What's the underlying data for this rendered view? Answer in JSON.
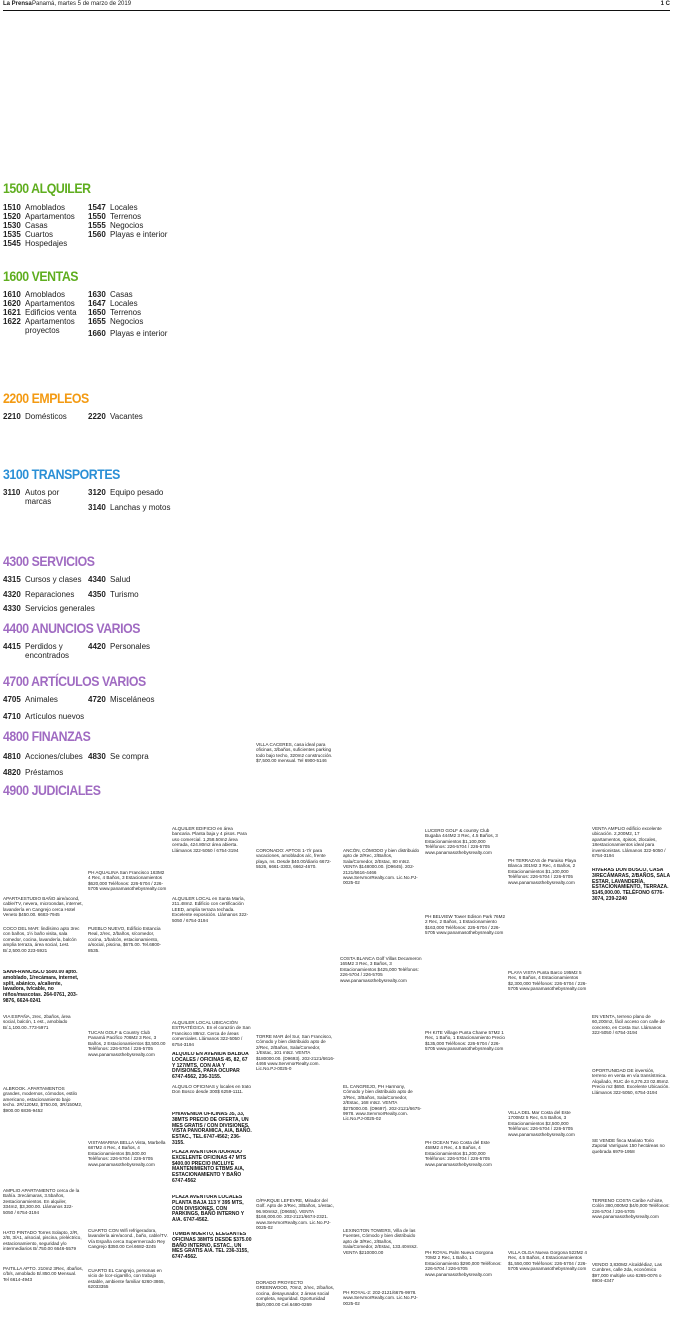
{
  "header": {
    "publication": "La Prensa",
    "date": "Panamá, martes 5 de marzo de 2019",
    "page": "1 C"
  },
  "index": {
    "alquiler": {
      "title": "1500 ALQUILER",
      "col1": [
        {
          "num": "1510",
          "label": "Amoblados"
        },
        {
          "num": "1520",
          "label": "Apartamentos"
        },
        {
          "num": "1530",
          "label": "Casas"
        },
        {
          "num": "1535",
          "label": "Cuartos"
        },
        {
          "num": "1545",
          "label": "Hospedajes"
        }
      ],
      "col2": [
        {
          "num": "1547",
          "label": "Locales"
        },
        {
          "num": "1550",
          "label": "Terrenos"
        },
        {
          "num": "1555",
          "label": "Negocios"
        },
        {
          "num": "1560",
          "label": "Playas e interior"
        }
      ]
    },
    "ventas": {
      "title": "1600 VENTAS",
      "col1": [
        {
          "num": "1610",
          "label": "Amoblados"
        },
        {
          "num": "1620",
          "label": "Apartamentos"
        },
        {
          "num": "1621",
          "label": "Edificios venta"
        },
        {
          "num": "1622",
          "label": "Apartamentos proyectos"
        }
      ],
      "col2": [
        {
          "num": "1630",
          "label": "Casas"
        },
        {
          "num": "1647",
          "label": "Locales"
        },
        {
          "num": "1650",
          "label": "Terrenos"
        },
        {
          "num": "1655",
          "label": "Negocios"
        },
        {
          "num": "1660",
          "label": "Playas e interior"
        }
      ]
    },
    "empleos": {
      "title": "2200 EMPLEOS",
      "items": [
        {
          "num": "2210",
          "label": "Domésticos"
        },
        {
          "num": "2220",
          "label": "Vacantes"
        }
      ]
    },
    "transportes": {
      "title": "3100 TRANSPORTES",
      "items": [
        {
          "num": "3110",
          "label": "Autos por marcas"
        },
        {
          "num": "3120",
          "label": "Equipo pesado"
        },
        {
          "num": "3140",
          "label": "Lanchas y motos"
        }
      ]
    },
    "servicios": {
      "title": "4300 SERVICIOS",
      "items": [
        {
          "num": "4315",
          "label": "Cursos y clases"
        },
        {
          "num": "4340",
          "label": "Salud"
        },
        {
          "num": "4320",
          "label": "Reparaciones"
        },
        {
          "num": "4350",
          "label": "Turismo"
        },
        {
          "num": "4330",
          "label": "Servicios generales"
        }
      ]
    },
    "anuncios": {
      "title": "4400 ANUNCIOS VARIOS",
      "items": [
        {
          "num": "4415",
          "label": "Perdidos y encontrados"
        },
        {
          "num": "4420",
          "label": "Personales"
        }
      ]
    },
    "articulos": {
      "title": "4700 ARTÍCULOS VARIOS",
      "items": [
        {
          "num": "4705",
          "label": "Animales"
        },
        {
          "num": "4720",
          "label": "Misceláneos"
        },
        {
          "num": "4710",
          "label": "Artículos nuevos"
        }
      ]
    },
    "finanzas": {
      "title": "4800 FINANZAS",
      "items": [
        {
          "num": "4810",
          "label": "Acciones/clubes"
        },
        {
          "num": "4830",
          "label": "Se compra"
        },
        {
          "num": "4820",
          "label": "Préstamos"
        }
      ]
    },
    "judiciales": {
      "title": "4900 JUDICIALES"
    }
  },
  "ads": {
    "villa_caceres": "VILLA CACERES, casa ideal para oficinas, 3/baños, suficientes parking todo bajo techo, 320m2 construcción. $7,500.00 mensual. Tel 6900-5146",
    "alquiler_edificio": "ALQUILER EDIFICIO en área bancaria. Planta baja y 4 pisos. Para uso comercial. 1,258.50m2 área cerrada, 424.80m2 área abierta. Llámanos 322-5050 / 6754-3194",
    "coronado": "CORONADO: APTOS 1-7/r para vacaciones, amoblados a/c, frente playa, ns. Desde $40.00/diario 6672-5526, 6661-3303, 6662-4670.",
    "ancon": "ANCÓN, CÓMODO y bien distribuido apto de 2/Rec, 2/Baños, Sala/Comedor, 2/Estac, 80 mts2. VENTA $148000.00. (D9645). 202-2121/6616-4466 www.ServmorRealty.com. Lic.No.PJ-0025-02",
    "lucero_golf": "LUCERO GOLF & country Club Bugaba 444M2 3 Rec, 4.5 Baños, 3 Estacionamientos $1,100,000 Teléfonos: 226-5704 / 226-5705 www.panamasothebysrealty.com",
    "venta_amplio": "VENTA AMPLIO edificio excelente ubicación. 2,200M2, 17 apartamentos, 4pisos, 2locales, 18estacionamientos ideal para inversionistas. Llámanos 322-5050 / 6754-3194",
    "ph_terrazas": "PH TERRAZAS de Paraiso Playa Blanca 301M2 3 Rec, 4 Baños, 2 Estacionamientos $1,100,000 Teléfonos: 226-5704 / 226-5705 www.panamasothebysrealty.com",
    "ph_aqualina": "PH AQUALINA San Francisco 163M2 4 Rec, 4 Baños, 3 Estacionamientos $620,000 Teléfonos: 226-5704 / 226-5705 www.panamasothebysrealty.com",
    "riveras": "RIVERAS DON BOSCO, CASA 3/RECÁMARAS, 2/BAÑOS, SALA ESTAR, LAVANDERÍA, ESTACIONAMIENTO, TERRAZA. $145,000.00. TELÉFONO 6776-3074, 239-2240",
    "apartaestudio": "APARTAESTUDIO BAÑO aire/acond, cable/TV, nevera, microondas, internet, lavandería en Cangrejo cerca Hotel Veneto $450.00. 6683-7945",
    "alquiler_local": "ALQUILER LOCAL en Santa María, 211.48m2. Edificio con certificación LEED, amplia terraza techada. Excelente exposición. Llámanos 322-5050 / 6754-3194",
    "coco_del_mar": "COCO DEL MAR: lindísimo apto 3rec con baños, 1½ baño visita, sala comedor, cocina, lavandería, balcón amplia terraza, área social, 1est. B/.2,500.00 223-5921",
    "pueblo_nuevo": "PUEBLO NUEVO, Edificio Estancia Real, 2/rec, 2/baños, s/comedor, cocina, 1/balcón, estacionamiento, a/social, piscina, $675.00. Tel.6800-8535.",
    "ph_belview": "PH BELVIEW Tower Edison Park 76M2 2 Rec, 2 Baños, 1 Estacionamiento $163,000 Teléfonos: 226-5704 / 226-5705 www.panamasothebysrealty.com",
    "costa_blanca": "COSTA BLANCA Golf Villas Decameron 165M2 3 Rec, 3 Baños, 3 Estacionamientos $425,000 Teléfonos: 226-5704 / 226-5705 www.panamasothebysrealty.com",
    "san_francisco": "SAN/FRANCISCO $500.00 apto. amoblado, 1/recámara, internet, split, abánico, a/caliente, lavadora, tv/cable, no niños/mascotas. 264-0761, 203-9876, 6624-0241",
    "playa_vista": "PLAYA VISTA Punta Barco 195M2 5 Rec, 6 Baños, 4 Estacionamientos $2,300,000 Teléfonos: 226-5704 / 226-5705 www.panamasothebysrealty.com",
    "via_espana": "VIA ESPAÑA, 2rec, 2baños, área social, balcón, 1 est., amoblado B/.1,100.00..773-5971",
    "en_venta": "EN VENTA, terreno plano de 60,200m2, fácil acceso con calle de concreto, en Costa Sur. Llámanos 322-5050 / 6754-3194",
    "alquiler_local_2": "ALQUILER LOCAL UBICACIÓN ESTRATÉGICA. En el corazón de San Francisco 88m2. Cerca de áreas comerciales. Llámanos 322-5050 / 6754-3194",
    "tucan_golf": "TUCAN GOLF & Country Club Panamá Pacifico 706M2 3 Rec, 3 Baños, 2 Estacionamientos $3,500.00 Teléfonos: 226-5704 / 226-5705 www.panamasothebysrealty.com",
    "torre_mar": "TORRE MAR del Sur, San Francisco, Cómodo y bien distribuido apto de 2/Rec, 2/Baños, Sala/Comedor, 1/Estac, 101 mts2. VENTA $180000.00. (D9693). 202-2121/6616-4466 www.ServmorRealty.com. Lic.No.PJ-0025-0",
    "ph_kite": "PH KITE Village Punta Chame 57M2 1 Rec, 1 Baño, 1 Estacionamiento Precio $135,000 Teléfonos: 226-5704 / 226-5705 www.panamasothebysrealty.com",
    "alquilo_avenida": "ALQUILO EN AVENIDA BALBOA LOCALES / OFICINAS 45, 82, 67 Y 127/MTS, CON A/A Y DIVISIONES, PARA OCUPAR 6747-4562, 236-3155.",
    "alquilo_oficinas": "ALQUILO OFICINAS y locales en trato Don Bosco desde 300$ 6259-1111.",
    "el_cangrejo": "EL CANGREJO, PH Harmony, Cómodo y bien distribuido apto de 3/Rec, 3/Baños, Sala/Comedor, 2/Estac, 168 mts2. VENTA $275000.00. (D9697). 202-2121/6675-9978. www.ServmorRealty.com. Lic.No.PJ-0025-02",
    "oportunidad": "OPORTUNIDAD DE inversión, terreno en venta en vía transístmica. Alquilado, RUC de 6,276.23 02.85m2. Precio m2 $650. Excelente Ubicación. Llámanos 322-5050, 6754-3194",
    "alboroa": "ALBROOK. APARTAMENTOS grandes, modernos, cómodos, estilo americano, estacionamiento bajo techo. 2R/120M2, $750.00, 3R/150M2, $900.00 6836-9452",
    "ph_avenida_ofi": "PH/AVENIDA OFICINAS 35, 33, 38MTS PRECIO DE OFERTA, UN MES GRATIS / CON DIVISIONES, VISTA PANORAMICA, A/A, BAÑO. ESTAC., TEL.6747-4562; 236-3155.",
    "villa_del_mar": "VILLA DEL Mar Costa del Este 1700M2 5 Rec, 6.5 Baños, 3 Estacionamientos $2,500,000 Teléfonos: 226-5704 / 226-5705 www.panamasothebysrealty.com",
    "ph_ocean": "PH OCEAN Two Costa del Este 458M2 4 Rec, 4.5 Baños, 4 Estacionamientos $1,200,000 Teléfonos: 226-5704 / 226-5705 www.panamasothebysrealty.com",
    "se_vende": "SE VENDE finca Mariato Torio Zapotal Varriguas 150 hectáreas no quebrada 6979-1958",
    "vistamarina": "VISTAMARINA BELLA Vista, Marbella 687M2 4 Rec, 4 Baños, 4 Estacionamientos $5,500.00 Teléfonos: 226-5704 / 226-5705 www.panamasothebysrealty.com",
    "plaza_aventura": "PLAZA AVENTURA /DORADO EXCELENTE OFICINAS 47 MTS $400.00 PRECIO INCLUYE MANTENIMIENTO ETBMS A/A, ESTACIONAMIENTO Y BAÑO 6747-4562",
    "amplio_apto": "AMPLIO APARTAMENTO cerca de la Bahía. 3recámaras, 3.5baños, 2estacionamientos. En alquiler, 334m2, $3,300.00. Llámanos 322-5050 / 6754-3194",
    "oparque": "O/PARQUE LEFEVRE, Mirador del Golf. Apto de 2/Rec, 3/Baños, 1/estac, 96.90mts2, (D9655). VENTA $168,000.00. 202-2121/6674-2321. www.ServmorRealty.com. Lic.No.PJ-0025-02",
    "terreno_costa": "TERRENO COSTA Caribe Achiote, Colón 380,000M2 $4/0,000 Teléfonos: 226-5704 / 226-5705 www.panamasothebysrealty.com",
    "plaza_aventura_2": "PLAZA AVENTURA LOCALES PLANTA BAJA 113 Y 395 MTS, CON DIVISIONES, CON PARKINGS, BAÑO INTERNO Y A/A. 6747-4562.",
    "cuarto_con": "CUARTO CON Wifi refrigeradora, lavandería aire/acond., baño, cable/TV. Vía España cerca Supermercado Rey Cangrejo $350.00 Cel.6682-3245",
    "lexington": "LEXINGTON TOWERS, Villa de las Fuentes, Cómodo y bien distribuido apto de 3/Rec, 2/Baños, Sala/Comedor, 2/Estac, 133.40mts2. VENTA $210000.00",
    "hato_pintado": "HATO PINTADO Torres Solapto, 2/R, 2/B, 3/A1, a/social, piscina, p/eléctrico, estacionamiento, seguridad y/o intermediarios B/.750.00 6646-5579",
    "tumba_muerto": "TUMBA MUERTO, ELEGANTES OFICINAS 38MTS DESDE $375.00 BAÑO INTERNO, ESTAC., UN MES GRATIS A/A. TEL 236-3155, 6747-4562.",
    "ph_royal": "PH ROYAL Palm Nueva Gorgona 70M2 2 Rec, 1 Baño, 1 Estacionamiento $290,000 Teléfonos: 226-5704 / 226-5705 www.panamasothebysrealty.com",
    "villa_olga": "VILLA OLGA Nueva Gorgona 522M2 4 Rec, 4.5 Baños, 4 Estacionamientos $1,550,000 Teléfonos: 226-5704 / 226-5705 www.panamasothebysrealty.com",
    "vendo": "VENDO 3,830M2 Alcaldédiaz, Las Cumbres, calle 2da, económico $97,000 multiple uso 6265-0076 o 6904-4347",
    "paitilla": "PAITILLA APTO. 210m2 3Rec, 4baños, c/b/s, amoblado B/.850.00 Mensual. Tel 6614-4943",
    "cuarto_el": "CUARTO EL Cangrejo, personas en vicio de lcor-cigarrillo, con trabajo estable, ambiente familiar 6260-3865, 62033355",
    "dorado_proyecto": "DORADO PROYECTO GREENWOOD, 70m2, 2/rec, 2/baños, cocina, desayunador, 2 áreas social completa, seguridad. Oportunidad $5/0,000.00 Cel.6480-0269",
    "lexington_2": "PH ROYAL-2: 202-2121/6675-9978. www.ServmorRealty.com. Lic.No.PJ-0025-02"
  }
}
